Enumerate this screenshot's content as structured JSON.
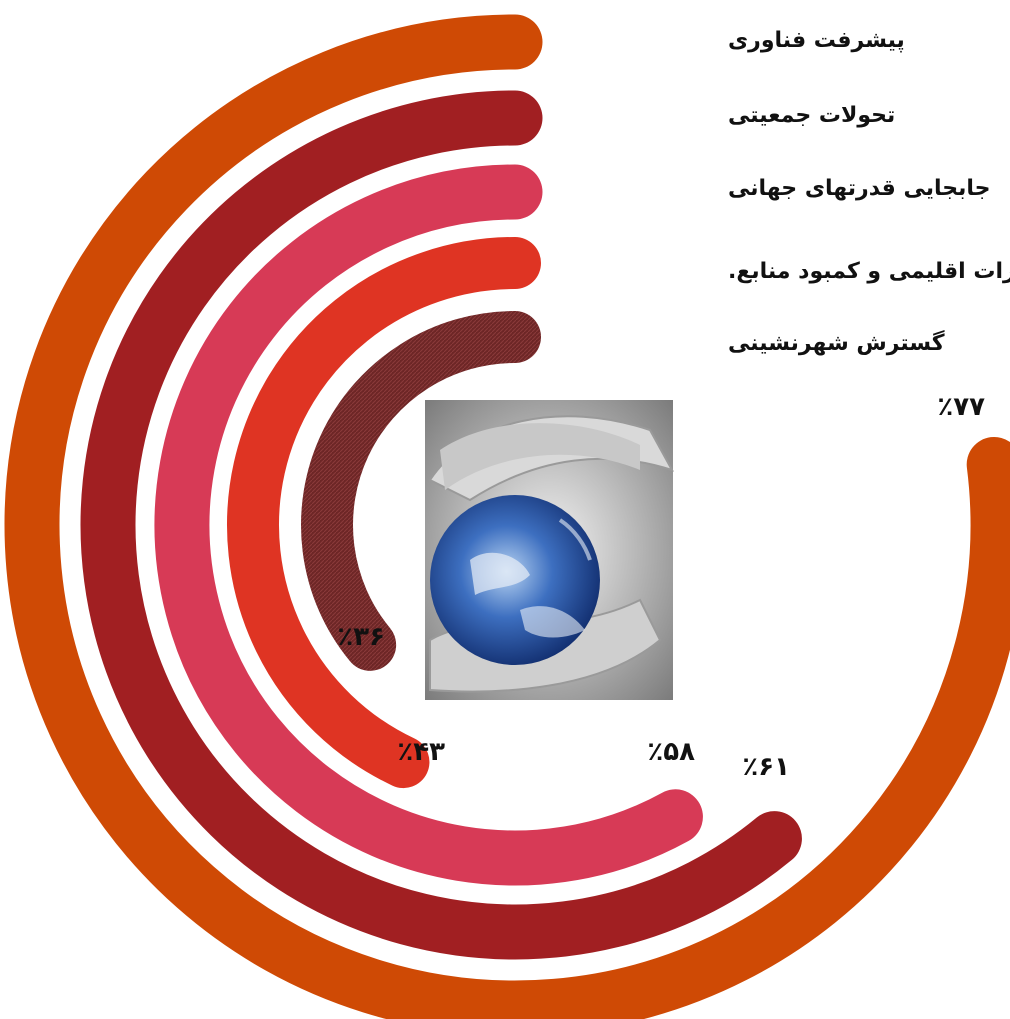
{
  "chart_data": {
    "type": "radial-bar",
    "categories": [
      "پیشرفت فناوری",
      "تحولات جمعیتی",
      "جابجایی قدرتهای جهانی",
      "تغییرات اقلیمی و کمبود منابع.",
      "گسترش شهرنشینی"
    ],
    "values": [
      77,
      61,
      58,
      43,
      36
    ],
    "value_labels": [
      "٪۷۷",
      "٪۶۱",
      "٪۵۸",
      "٪۴۳",
      "٪۳۶"
    ],
    "colors": [
      "#cf4a05",
      "#a11f22",
      "#d73a56",
      "#df3423",
      "#7a2a2a"
    ],
    "ylim": [
      0,
      100
    ]
  },
  "center_image": "hands-holding-globe"
}
